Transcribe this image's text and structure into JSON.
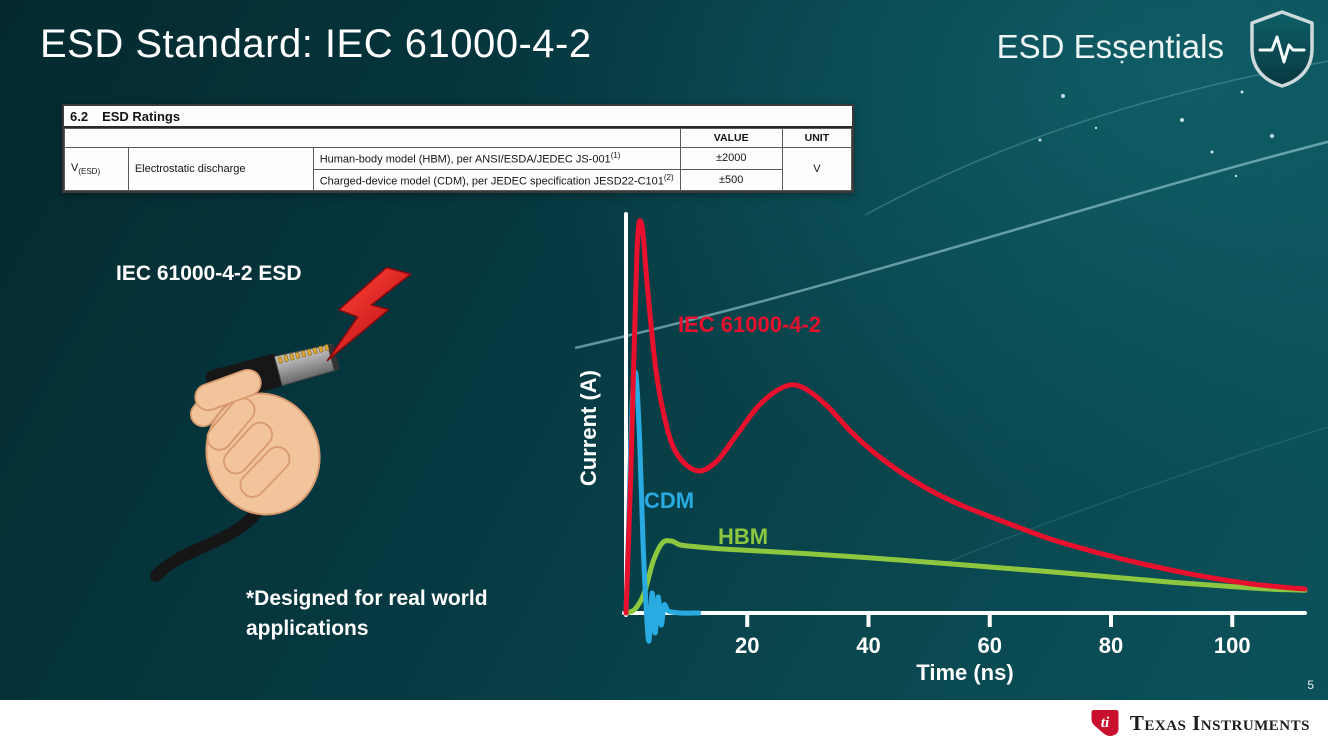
{
  "slide": {
    "title": "ESD Standard: IEC 61000-4-2",
    "brand": "ESD Essentials",
    "page_number": "5"
  },
  "icons": {
    "brand_shield": "shield-with-pulse-line",
    "esd_bolt": "red-lightning-bolt",
    "footer_logo": "ti-bug"
  },
  "ratings_table": {
    "section": "6.2",
    "section_title": "ESD Ratings",
    "col_value": "VALUE",
    "col_unit": "UNIT",
    "param_symbol": "V",
    "param_sub": "(ESD)",
    "param_name": "Electrostatic discharge",
    "rows": [
      {
        "desc": "Human-body model (HBM), per ANSI/ESDA/JEDEC JS-001",
        "sup": "(1)",
        "value": "±2000"
      },
      {
        "desc": "Charged-device model (CDM), per JEDEC specification JESD22-C101",
        "sup": "(2)",
        "value": "±500"
      }
    ],
    "unit": "V"
  },
  "left": {
    "caption": "IEC 61000-4-2 ESD",
    "note_line1": "*Designed for real world",
    "note_line2": "applications"
  },
  "footer": {
    "logo_text": "Texas Instruments"
  },
  "chart_data": {
    "type": "line",
    "title": "",
    "xlabel": "Time (ns)",
    "ylabel": "Current (A)",
    "xlim": [
      0,
      112
    ],
    "ylim": [
      -0.08,
      1.0
    ],
    "x_ticks": [
      20,
      40,
      60,
      80,
      100
    ],
    "grid": false,
    "legend_position": "inline-labels",
    "axis_color": "#ffffff",
    "series": [
      {
        "name": "IEC 61000-4-2",
        "color": "#e8112d",
        "points": [
          [
            0,
            0
          ],
          [
            0.8,
            0.35
          ],
          [
            1.8,
            0.9
          ],
          [
            2.6,
            0.97
          ],
          [
            3.5,
            0.82
          ],
          [
            5,
            0.6
          ],
          [
            7,
            0.45
          ],
          [
            9,
            0.385
          ],
          [
            12,
            0.355
          ],
          [
            15,
            0.38
          ],
          [
            18,
            0.44
          ],
          [
            22,
            0.52
          ],
          [
            26,
            0.565
          ],
          [
            29,
            0.565
          ],
          [
            33,
            0.52
          ],
          [
            37,
            0.455
          ],
          [
            41,
            0.4
          ],
          [
            46,
            0.345
          ],
          [
            51,
            0.3
          ],
          [
            56,
            0.265
          ],
          [
            62,
            0.23
          ],
          [
            70,
            0.185
          ],
          [
            78,
            0.15
          ],
          [
            86,
            0.12
          ],
          [
            94,
            0.095
          ],
          [
            102,
            0.075
          ],
          [
            108,
            0.065
          ],
          [
            112,
            0.06
          ]
        ]
      },
      {
        "name": "CDM",
        "color": "#29abe2",
        "points": [
          [
            0,
            0
          ],
          [
            0.4,
            0.2
          ],
          [
            1,
            0.52
          ],
          [
            1.6,
            0.6
          ],
          [
            2.2,
            0.45
          ],
          [
            2.8,
            0.18
          ],
          [
            3.3,
            0.02
          ],
          [
            3.8,
            -0.07
          ],
          [
            4.3,
            0.05
          ],
          [
            4.8,
            -0.05
          ],
          [
            5.3,
            0.04
          ],
          [
            5.8,
            -0.03
          ],
          [
            6.3,
            0.02
          ],
          [
            7,
            0.005
          ],
          [
            9,
            0
          ],
          [
            12,
            0
          ]
        ]
      },
      {
        "name": "HBM",
        "color": "#8dc63f",
        "points": [
          [
            0,
            0
          ],
          [
            1.5,
            0.01
          ],
          [
            3,
            0.05
          ],
          [
            4.5,
            0.13
          ],
          [
            6,
            0.175
          ],
          [
            7.5,
            0.18
          ],
          [
            9,
            0.17
          ],
          [
            12,
            0.165
          ],
          [
            16,
            0.16
          ],
          [
            22,
            0.155
          ],
          [
            30,
            0.148
          ],
          [
            40,
            0.138
          ],
          [
            50,
            0.127
          ],
          [
            60,
            0.115
          ],
          [
            70,
            0.103
          ],
          [
            80,
            0.09
          ],
          [
            90,
            0.077
          ],
          [
            100,
            0.066
          ],
          [
            106,
            0.06
          ],
          [
            112,
            0.057
          ]
        ]
      }
    ]
  }
}
